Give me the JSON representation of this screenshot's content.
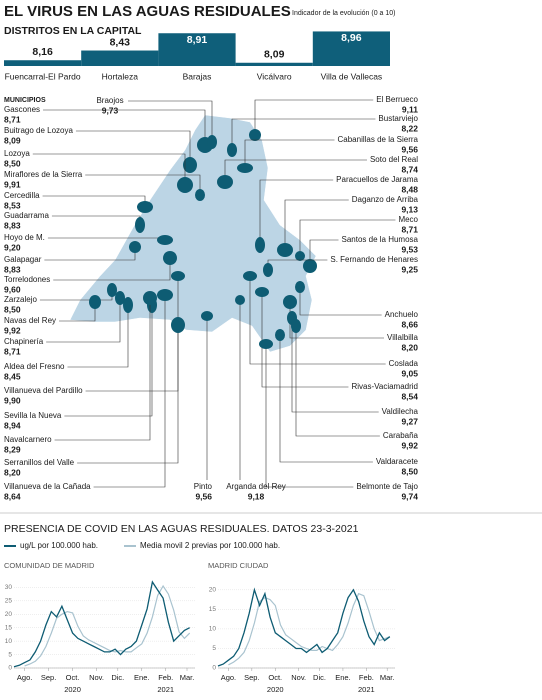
{
  "header": {
    "title": "EL VIRUS EN LAS AGUAS RESIDUALES",
    "subtitle": "Indicador de la evolución (0 a 10)"
  },
  "chart_data": [
    {
      "type": "bar",
      "title": "DISTRITOS EN LA CAPITAL",
      "categories": [
        "Fuencarral-El Pardo",
        "Hortaleza",
        "Barajas",
        "Vicálvaro",
        "Villa de Vallecas"
      ],
      "values": [
        8.16,
        8.43,
        8.91,
        8.09,
        8.96
      ],
      "value_labels": [
        "8,16",
        "8,43",
        "8,91",
        "8,09",
        "8,96"
      ],
      "color": "#0f5f7a",
      "ylim": [
        8,
        9
      ]
    },
    {
      "type": "line",
      "title": "COMUNIDAD DE MADRID",
      "x": [
        0,
        1,
        2,
        3,
        4,
        5,
        6,
        7,
        8,
        9,
        10,
        11,
        12,
        13,
        14,
        15,
        16,
        17,
        18,
        19,
        20,
        21,
        22,
        23,
        24,
        25,
        26,
        27,
        28,
        29,
        30,
        31,
        32,
        33
      ],
      "series": [
        {
          "name": "ug/L por 100.000 hab.",
          "color": "#0e5c73",
          "values": [
            0.5,
            1,
            2,
            3,
            6,
            10,
            16,
            21,
            19,
            23,
            18,
            13,
            11,
            10,
            9,
            8,
            7,
            6,
            6,
            7,
            5,
            7,
            8,
            10,
            16,
            22,
            32,
            29,
            26,
            17,
            10,
            12,
            14,
            15
          ]
        },
        {
          "name": "Media movil 2 previas por 100.000 hab.",
          "color": "#a9c3cf",
          "values": [
            null,
            null,
            0.8,
            1.5,
            2.5,
            4.5,
            8,
            13,
            18.5,
            20,
            21,
            20.5,
            15.5,
            12,
            10.5,
            9.5,
            8.5,
            7.5,
            6.5,
            6,
            6.5,
            6,
            6,
            7.5,
            9,
            13,
            19,
            27,
            30.5,
            27.5,
            21.5,
            13.5,
            11,
            13
          ]
        }
      ],
      "xlim": [
        0,
        34
      ],
      "ylim": [
        0,
        32
      ],
      "yticks": [
        0,
        5,
        10,
        15,
        20,
        25,
        30
      ],
      "xticks": [
        {
          "value": 2,
          "label": "Ago."
        },
        {
          "value": 6.5,
          "label": "Sep."
        },
        {
          "value": 11,
          "label": "Oct."
        },
        {
          "value": 15.5,
          "label": "Nov."
        },
        {
          "value": 19.5,
          "label": "Dic."
        },
        {
          "value": 24,
          "label": "Ene."
        },
        {
          "value": 28.5,
          "label": "Feb."
        },
        {
          "value": 32.5,
          "label": "Mar."
        }
      ],
      "year_labels": [
        {
          "value": 11,
          "label": "2020"
        },
        {
          "value": 28.5,
          "label": "2021"
        }
      ],
      "grid": true
    },
    {
      "type": "line",
      "title": "MADRID CIUDAD",
      "x": [
        0,
        1,
        2,
        3,
        4,
        5,
        6,
        7,
        8,
        9,
        10,
        11,
        12,
        13,
        14,
        15,
        16,
        17,
        18,
        19,
        20,
        21,
        22,
        23,
        24,
        25,
        26,
        27,
        28,
        29,
        30,
        31,
        32,
        33
      ],
      "series": [
        {
          "color": "#0e5c73",
          "values": [
            0.5,
            1,
            2,
            3,
            5,
            9,
            14,
            20,
            16,
            19,
            13,
            9,
            8,
            7,
            6,
            5,
            5,
            4,
            5,
            6,
            4,
            5,
            7,
            9,
            14,
            18,
            20,
            17,
            12,
            8,
            6,
            9,
            7,
            8
          ]
        },
        {
          "color": "#a9c3cf",
          "values": [
            null,
            null,
            0.8,
            1.5,
            2.5,
            4,
            7,
            11.5,
            17,
            18,
            17.5,
            16,
            11,
            8.5,
            7.5,
            6.5,
            5.5,
            5,
            4.5,
            4.5,
            5.5,
            5,
            4.5,
            6,
            8,
            11.5,
            16,
            19,
            18.5,
            14.5,
            10,
            7,
            7.5,
            8
          ]
        }
      ],
      "xlim": [
        0,
        34
      ],
      "ylim": [
        0,
        22
      ],
      "yticks": [
        0,
        5,
        10,
        15,
        20
      ],
      "xticks": [
        {
          "value": 2,
          "label": "Ago."
        },
        {
          "value": 6.5,
          "label": "Sep."
        },
        {
          "value": 11,
          "label": "Oct."
        },
        {
          "value": 15.5,
          "label": "Nov."
        },
        {
          "value": 19.5,
          "label": "Dic."
        },
        {
          "value": 24,
          "label": "Ene."
        },
        {
          "value": 28.5,
          "label": "Feb."
        },
        {
          "value": 32.5,
          "label": "Mar."
        }
      ],
      "year_labels": [
        {
          "value": 11,
          "label": "2020"
        },
        {
          "value": 28.5,
          "label": "2021"
        }
      ],
      "grid": true
    }
  ],
  "map": {
    "title": "MUNICIPIOS",
    "left": [
      {
        "name": "Gascones",
        "value": "8,71"
      },
      {
        "name": "Buitrago de Lozoya",
        "value": "8,09"
      },
      {
        "name": "Lozoya",
        "value": "8,50"
      },
      {
        "name": "Miraflores de la Sierra",
        "value": "9,91"
      },
      {
        "name": "Cercedilla",
        "value": "8,53"
      },
      {
        "name": "Guadarrama",
        "value": "8,83"
      },
      {
        "name": "Hoyo de M.",
        "value": "9,20"
      },
      {
        "name": "Galapagar",
        "value": "8,83"
      },
      {
        "name": "Torrelodones",
        "value": "9,60"
      },
      {
        "name": "Zarzalejo",
        "value": "8,50"
      },
      {
        "name": "Navas del Rey",
        "value": "9,92"
      },
      {
        "name": "Chapinería",
        "value": "8,71"
      },
      {
        "name": "Aldea del Fresno",
        "value": "8,45"
      },
      {
        "name": "Villanueva del Pardillo",
        "value": "9,90"
      },
      {
        "name": "Sevilla la Nueva",
        "value": "8,94"
      },
      {
        "name": "Navalcarnero",
        "value": "8,29"
      },
      {
        "name": "Serranillos del Valle",
        "value": "8,20"
      },
      {
        "name": "Villanueva de la Cañada",
        "value": "8,64"
      }
    ],
    "top": [
      {
        "name": "Braojos",
        "value": "9,73"
      }
    ],
    "bottom": [
      {
        "name": "Pinto",
        "value": "9,56"
      },
      {
        "name": "Arganda del Rey",
        "value": "9,18"
      }
    ],
    "right": [
      {
        "name": "El Berrueco",
        "value": "9,11"
      },
      {
        "name": "Bustarviejo",
        "value": "8,22"
      },
      {
        "name": "Cabanillas de la Sierra",
        "value": "9,56"
      },
      {
        "name": "Soto del Real",
        "value": "8,74"
      },
      {
        "name": "Paracuellos de Jarama",
        "value": "8,48"
      },
      {
        "name": "Daganzo de Arriba",
        "value": "9,13"
      },
      {
        "name": "Meco",
        "value": "8,71"
      },
      {
        "name": "Santos de la Humosa",
        "value": "9,53"
      },
      {
        "name": "S. Fernando de Henares",
        "value": "9,25"
      },
      {
        "name": "Anchuelo",
        "value": "8,66"
      },
      {
        "name": "Villalbilla",
        "value": "8,20"
      },
      {
        "name": "Coslada",
        "value": "9,05"
      },
      {
        "name": "Rivas-Vaciamadrid",
        "value": "8,54"
      },
      {
        "name": "Valdilecha",
        "value": "9,27"
      },
      {
        "name": "Carabaña",
        "value": "9,92"
      },
      {
        "name": "Valdaracete",
        "value": "8,50"
      },
      {
        "name": "Belmonte de Tajo",
        "value": "9,74"
      }
    ]
  },
  "covid_section": {
    "title": "PRESENCIA DE COVID EN LAS AGUAS RESIDUALES. DATOS 23-3-2021"
  }
}
